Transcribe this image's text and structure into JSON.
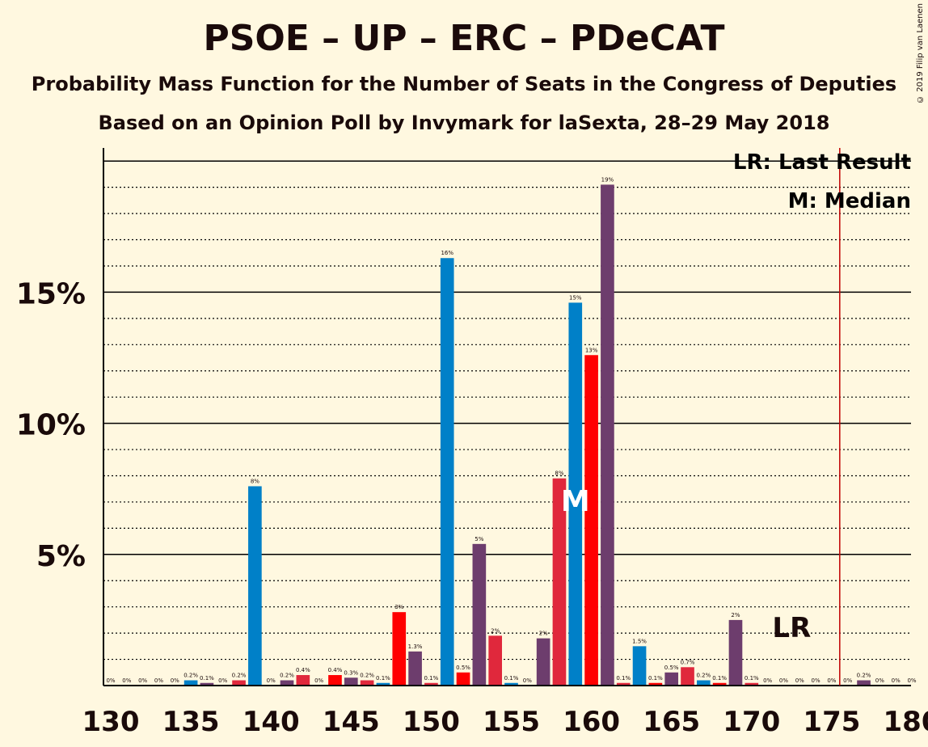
{
  "header": {
    "title": "PSOE – UP – ERC – PDeCAT",
    "subtitle": "Probability Mass Function for the Number of Seats in the Congress of Deputies",
    "subtitle2": "Based on an Opinion Poll by Invymark for laSexta, 28–29 May 2018",
    "copyright": "© 2019 Filip van Laenen"
  },
  "legend": {
    "lr": "LR: Last Result",
    "median": "M: Median",
    "lr_marker": "LR",
    "median_marker": "M"
  },
  "colors": {
    "background": "#fff8e0",
    "blue": "#0080c8",
    "purple": "#6d3d6d",
    "red": "#ff0000",
    "rose": "#e0283c",
    "last_result_line": "#c00000"
  },
  "chart_data": {
    "type": "bar",
    "xlabel": "",
    "ylabel": "",
    "xlim": [
      130,
      180
    ],
    "ylim": [
      0,
      20.5
    ],
    "x_ticks": [
      130,
      135,
      140,
      145,
      150,
      155,
      160,
      165,
      170,
      175,
      180
    ],
    "y_ticks": [
      {
        "value": 5,
        "label": "5%"
      },
      {
        "value": 10,
        "label": "10%"
      },
      {
        "value": 15,
        "label": "15%"
      }
    ],
    "grid": "dotted minor every 1%, solid at 5%",
    "median": 159,
    "last_result": 176,
    "bars": [
      {
        "x": 130,
        "value": 0,
        "label": "0%",
        "color": "rose"
      },
      {
        "x": 131,
        "value": 0,
        "label": "0%",
        "color": "blue"
      },
      {
        "x": 132,
        "value": 0,
        "label": "0%",
        "color": "purple"
      },
      {
        "x": 133,
        "value": 0,
        "label": "0%",
        "color": "red"
      },
      {
        "x": 134,
        "value": 0,
        "label": "0%",
        "color": "rose"
      },
      {
        "x": 135,
        "value": 0.2,
        "label": "0.2%",
        "color": "blue"
      },
      {
        "x": 136,
        "value": 0.1,
        "label": "0.1%",
        "color": "purple"
      },
      {
        "x": 137,
        "value": 0,
        "label": "0%",
        "color": "red"
      },
      {
        "x": 138,
        "value": 0.2,
        "label": "0.2%",
        "color": "rose"
      },
      {
        "x": 139,
        "value": 7.6,
        "label": "8%",
        "color": "blue"
      },
      {
        "x": 140,
        "value": 0,
        "label": "0%",
        "color": "purple"
      },
      {
        "x": 141,
        "value": 0.2,
        "label": "0.2%",
        "color": "purple"
      },
      {
        "x": 142,
        "value": 0.4,
        "label": "0.4%",
        "color": "rose"
      },
      {
        "x": 143,
        "value": 0,
        "label": "0%",
        "color": "blue"
      },
      {
        "x": 144,
        "value": 0.4,
        "label": "0.4%",
        "color": "red"
      },
      {
        "x": 145,
        "value": 0.3,
        "label": "0.3%",
        "color": "purple"
      },
      {
        "x": 146,
        "value": 0.2,
        "label": "0.2%",
        "color": "rose"
      },
      {
        "x": 147,
        "value": 0.1,
        "label": "0.1%",
        "color": "blue"
      },
      {
        "x": 148,
        "value": 2.8,
        "label": "3%",
        "color": "red"
      },
      {
        "x": 149,
        "value": 1.3,
        "label": "1.3%",
        "color": "purple"
      },
      {
        "x": 150,
        "value": 0.1,
        "label": "0.1%",
        "color": "rose"
      },
      {
        "x": 151,
        "value": 16.3,
        "label": "16%",
        "color": "blue"
      },
      {
        "x": 152,
        "value": 0.5,
        "label": "0.5%",
        "color": "red"
      },
      {
        "x": 153,
        "value": 5.4,
        "label": "5%",
        "color": "purple"
      },
      {
        "x": 154,
        "value": 1.9,
        "label": "2%",
        "color": "rose"
      },
      {
        "x": 155,
        "value": 0.1,
        "label": "0.1%",
        "color": "blue"
      },
      {
        "x": 156,
        "value": 0,
        "label": "0%",
        "color": "red"
      },
      {
        "x": 157,
        "value": 1.8,
        "label": "2%",
        "color": "purple"
      },
      {
        "x": 158,
        "value": 7.9,
        "label": "8%",
        "color": "rose"
      },
      {
        "x": 159,
        "value": 14.6,
        "label": "15%",
        "color": "blue"
      },
      {
        "x": 160,
        "value": 12.6,
        "label": "13%",
        "color": "red"
      },
      {
        "x": 161,
        "value": 19.1,
        "label": "19%",
        "color": "purple"
      },
      {
        "x": 162,
        "value": 0.1,
        "label": "0.1%",
        "color": "rose"
      },
      {
        "x": 163,
        "value": 1.5,
        "label": "1.5%",
        "color": "blue"
      },
      {
        "x": 164,
        "value": 0.1,
        "label": "0.1%",
        "color": "red"
      },
      {
        "x": 165,
        "value": 0.5,
        "label": "0.5%",
        "color": "purple"
      },
      {
        "x": 166,
        "value": 0.7,
        "label": "0.7%",
        "color": "rose"
      },
      {
        "x": 167,
        "value": 0.2,
        "label": "0.2%",
        "color": "blue"
      },
      {
        "x": 168,
        "value": 0.1,
        "label": "0.1%",
        "color": "red"
      },
      {
        "x": 169,
        "value": 2.5,
        "label": "2%",
        "color": "purple"
      },
      {
        "x": 170,
        "value": 0.1,
        "label": "0.1%",
        "color": "rose"
      },
      {
        "x": 171,
        "value": 0,
        "label": "0%",
        "color": "blue"
      },
      {
        "x": 172,
        "value": 0,
        "label": "0%",
        "color": "red"
      },
      {
        "x": 173,
        "value": 0,
        "label": "0%",
        "color": "purple"
      },
      {
        "x": 174,
        "value": 0,
        "label": "0%",
        "color": "rose"
      },
      {
        "x": 175,
        "value": 0,
        "label": "0%",
        "color": "blue"
      },
      {
        "x": 176,
        "value": 0,
        "label": "0%",
        "color": "red"
      },
      {
        "x": 177,
        "value": 0.2,
        "label": "0.2%",
        "color": "purple"
      },
      {
        "x": 178,
        "value": 0,
        "label": "0%",
        "color": "rose"
      },
      {
        "x": 179,
        "value": 0,
        "label": "0%",
        "color": "blue"
      },
      {
        "x": 180,
        "value": 0,
        "label": "0%",
        "color": "red"
      }
    ]
  }
}
